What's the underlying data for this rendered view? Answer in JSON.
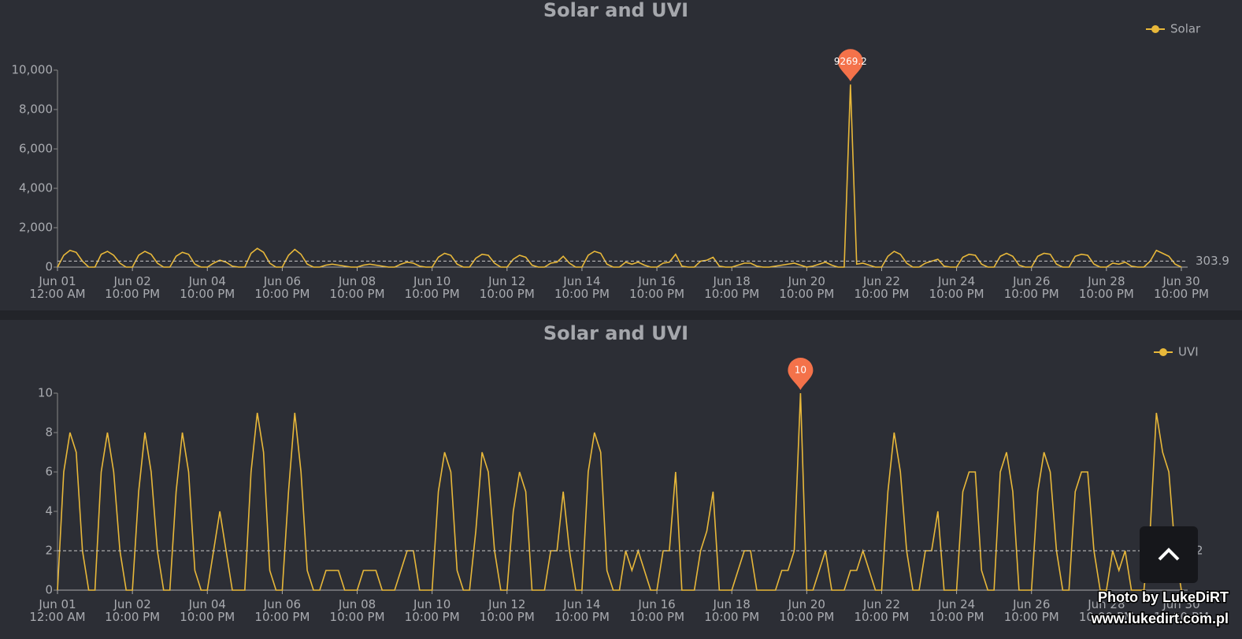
{
  "chart_data": [
    {
      "type": "line",
      "title": "Solar and UVI",
      "categories": [
        "Jun 01\n12:00 AM",
        null,
        null,
        null,
        null,
        null,
        null,
        null,
        null,
        null,
        null,
        null,
        "Jun 02\n10:00 PM",
        null,
        null,
        null,
        null,
        null,
        null,
        null,
        null,
        null,
        null,
        null,
        "Jun 04\n10:00 PM",
        null,
        null,
        null,
        null,
        null,
        null,
        null,
        null,
        null,
        null,
        null,
        "Jun 06\n10:00 PM",
        null,
        null,
        null,
        null,
        null,
        null,
        null,
        null,
        null,
        null,
        null,
        "Jun 08\n10:00 PM",
        null,
        null,
        null,
        null,
        null,
        null,
        null,
        null,
        null,
        null,
        null,
        "Jun 10\n10:00 PM",
        null,
        null,
        null,
        null,
        null,
        null,
        null,
        null,
        null,
        null,
        null,
        "Jun 12\n10:00 PM",
        null,
        null,
        null,
        null,
        null,
        null,
        null,
        null,
        null,
        null,
        null,
        "Jun 14\n10:00 PM",
        null,
        null,
        null,
        null,
        null,
        null,
        null,
        null,
        null,
        null,
        null,
        "Jun 16\n10:00 PM",
        null,
        null,
        null,
        null,
        null,
        null,
        null,
        null,
        null,
        null,
        null,
        "Jun 18\n10:00 PM",
        null,
        null,
        null,
        null,
        null,
        null,
        null,
        null,
        null,
        null,
        null,
        "Jun 20\n10:00 PM",
        null,
        null,
        null,
        null,
        null,
        null,
        null,
        null,
        null,
        null,
        null,
        "Jun 22\n10:00 PM",
        null,
        null,
        null,
        null,
        null,
        null,
        null,
        null,
        null,
        null,
        null,
        "Jun 24\n10:00 PM",
        null,
        null,
        null,
        null,
        null,
        null,
        null,
        null,
        null,
        null,
        null,
        "Jun 26\n10:00 PM",
        null,
        null,
        null,
        null,
        null,
        null,
        null,
        null,
        null,
        null,
        null,
        "Jun 28\n10:00 PM",
        null,
        null,
        null,
        null,
        null,
        null,
        null,
        null,
        null,
        null,
        null,
        "Jun 30\n10:00 PM"
      ],
      "series": [
        {
          "name": "Solar",
          "color": "#e8b83a",
          "values": [
            0,
            600,
            850,
            750,
            300,
            0,
            0,
            650,
            800,
            600,
            200,
            0,
            0,
            600,
            800,
            650,
            200,
            0,
            0,
            550,
            750,
            650,
            150,
            0,
            0,
            200,
            350,
            250,
            50,
            0,
            0,
            700,
            950,
            750,
            200,
            0,
            0,
            600,
            900,
            650,
            150,
            0,
            0,
            100,
            150,
            100,
            50,
            0,
            0,
            100,
            150,
            100,
            50,
            0,
            0,
            150,
            250,
            200,
            50,
            0,
            0,
            500,
            700,
            600,
            150,
            0,
            0,
            450,
            650,
            600,
            200,
            0,
            0,
            400,
            600,
            500,
            100,
            0,
            0,
            200,
            250,
            550,
            200,
            0,
            0,
            600,
            800,
            700,
            150,
            0,
            0,
            250,
            150,
            250,
            100,
            0,
            0,
            200,
            250,
            650,
            50,
            0,
            0,
            300,
            350,
            500,
            50,
            0,
            0,
            100,
            200,
            200,
            50,
            0,
            0,
            50,
            100,
            150,
            200,
            100,
            0,
            50,
            150,
            250,
            100,
            0,
            0,
            9269.2,
            150,
            200,
            100,
            0,
            0,
            550,
            800,
            650,
            200,
            0,
            0,
            200,
            300,
            400,
            50,
            0,
            0,
            500,
            650,
            600,
            150,
            0,
            0,
            550,
            700,
            550,
            100,
            0,
            0,
            550,
            700,
            650,
            150,
            0,
            0,
            550,
            650,
            600,
            150,
            0,
            0,
            200,
            150,
            250,
            50,
            0,
            0,
            300,
            850,
            700,
            550,
            150,
            0
          ]
        }
      ],
      "ylim": [
        0,
        10000
      ],
      "yticks": [
        0,
        {
          "value": 2000,
          "label": "2,000"
        },
        {
          "value": 4000,
          "label": "4,000"
        },
        {
          "value": 6000,
          "label": "6,000"
        },
        {
          "value": 8000,
          "label": "8,000"
        },
        {
          "value": 10000,
          "label": "10,000"
        }
      ],
      "mean_line": 303.9,
      "legend": "top-right",
      "marker_color": "#f4724a"
    },
    {
      "type": "line",
      "title": "Solar and UVI",
      "categories": [
        "Jun 01\n12:00 AM",
        null,
        null,
        null,
        null,
        null,
        null,
        null,
        null,
        null,
        null,
        null,
        "Jun 02\n10:00 PM",
        null,
        null,
        null,
        null,
        null,
        null,
        null,
        null,
        null,
        null,
        null,
        "Jun 04\n10:00 PM",
        null,
        null,
        null,
        null,
        null,
        null,
        null,
        null,
        null,
        null,
        null,
        "Jun 06\n10:00 PM",
        null,
        null,
        null,
        null,
        null,
        null,
        null,
        null,
        null,
        null,
        null,
        "Jun 08\n10:00 PM",
        null,
        null,
        null,
        null,
        null,
        null,
        null,
        null,
        null,
        null,
        null,
        "Jun 10\n10:00 PM",
        null,
        null,
        null,
        null,
        null,
        null,
        null,
        null,
        null,
        null,
        null,
        "Jun 12\n10:00 PM",
        null,
        null,
        null,
        null,
        null,
        null,
        null,
        null,
        null,
        null,
        null,
        "Jun 14\n10:00 PM",
        null,
        null,
        null,
        null,
        null,
        null,
        null,
        null,
        null,
        null,
        null,
        "Jun 16\n10:00 PM",
        null,
        null,
        null,
        null,
        null,
        null,
        null,
        null,
        null,
        null,
        null,
        "Jun 18\n10:00 PM",
        null,
        null,
        null,
        null,
        null,
        null,
        null,
        null,
        null,
        null,
        null,
        "Jun 20\n10:00 PM",
        null,
        null,
        null,
        null,
        null,
        null,
        null,
        null,
        null,
        null,
        null,
        "Jun 22\n10:00 PM",
        null,
        null,
        null,
        null,
        null,
        null,
        null,
        null,
        null,
        null,
        null,
        "Jun 24\n10:00 PM",
        null,
        null,
        null,
        null,
        null,
        null,
        null,
        null,
        null,
        null,
        null,
        "Jun 26\n10:00 PM",
        null,
        null,
        null,
        null,
        null,
        null,
        null,
        null,
        null,
        null,
        null,
        "Jun 28\n10:00 PM",
        null,
        null,
        null,
        null,
        null,
        null,
        null,
        null,
        null,
        null,
        null,
        "Jun 30\n10:00 PM"
      ],
      "series": [
        {
          "name": "UVI",
          "color": "#e8b83a",
          "values": [
            0,
            6,
            8,
            7,
            2,
            0,
            0,
            6,
            8,
            6,
            2,
            0,
            0,
            5,
            8,
            6,
            2,
            0,
            0,
            5,
            8,
            6,
            1,
            0,
            0,
            2,
            4,
            2,
            0,
            0,
            0,
            6,
            9,
            7,
            1,
            0,
            0,
            5,
            9,
            6,
            1,
            0,
            0,
            1,
            1,
            1,
            0,
            0,
            0,
            1,
            1,
            1,
            0,
            0,
            0,
            1,
            2,
            2,
            0,
            0,
            0,
            5,
            7,
            6,
            1,
            0,
            0,
            3,
            7,
            6,
            2,
            0,
            0,
            4,
            6,
            5,
            0,
            0,
            0,
            2,
            2,
            5,
            2,
            0,
            0,
            6,
            8,
            7,
            1,
            0,
            0,
            2,
            1,
            2,
            1,
            0,
            0,
            2,
            2,
            6,
            0,
            0,
            0,
            2,
            3,
            5,
            0,
            0,
            0,
            1,
            2,
            2,
            0,
            0,
            0,
            0,
            1,
            1,
            2,
            10,
            0,
            0,
            1,
            2,
            0,
            0,
            0,
            1,
            1,
            2,
            1,
            0,
            0,
            5,
            8,
            6,
            2,
            0,
            0,
            2,
            2,
            4,
            0,
            0,
            0,
            5,
            6,
            6,
            1,
            0,
            0,
            6,
            7,
            5,
            0,
            0,
            0,
            5,
            7,
            6,
            2,
            0,
            0,
            5,
            6,
            6,
            2,
            0,
            0,
            2,
            1,
            2,
            0,
            0,
            0,
            3,
            9,
            7,
            6,
            2,
            0
          ]
        }
      ],
      "ylim": [
        0,
        10
      ],
      "yticks": [
        0,
        2,
        4,
        6,
        8,
        10
      ],
      "mean_line": 2,
      "legend": "top-right",
      "marker_color": "#f4724a"
    }
  ],
  "watermark": [
    "Photo by LukeDiRT",
    "www.lukedirt.com.pl"
  ]
}
